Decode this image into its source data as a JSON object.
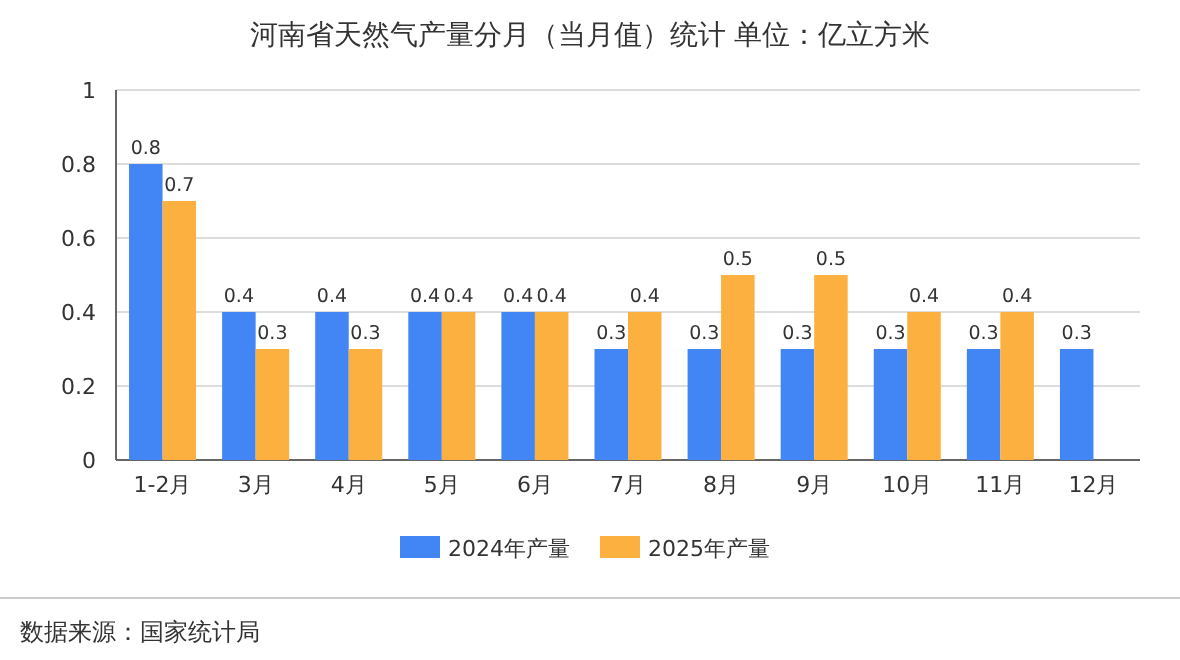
{
  "chart_data": {
    "type": "bar",
    "title": "河南省天然气产量分月（当月值）统计 单位：亿立方米",
    "categories": [
      "1-2月",
      "3月",
      "4月",
      "5月",
      "6月",
      "7月",
      "8月",
      "9月",
      "10月",
      "11月",
      "12月"
    ],
    "series": [
      {
        "name": "2024年产量",
        "color": "#4285f4",
        "values": [
          0.8,
          0.4,
          0.4,
          0.4,
          0.4,
          0.3,
          0.3,
          0.3,
          0.3,
          0.3,
          0.3
        ]
      },
      {
        "name": "2025年产量",
        "color": "#fbb040",
        "values": [
          0.7,
          0.3,
          0.3,
          0.4,
          0.4,
          0.4,
          0.5,
          0.5,
          0.4,
          0.4,
          null
        ]
      }
    ],
    "ylim": [
      0,
      1
    ],
    "yticks": [
      0,
      0.2,
      0.4,
      0.6,
      0.8,
      1
    ],
    "grid": "y",
    "legend": "bottom",
    "data_labels": true,
    "annotations": [
      "数据来源：国家统计局"
    ]
  }
}
